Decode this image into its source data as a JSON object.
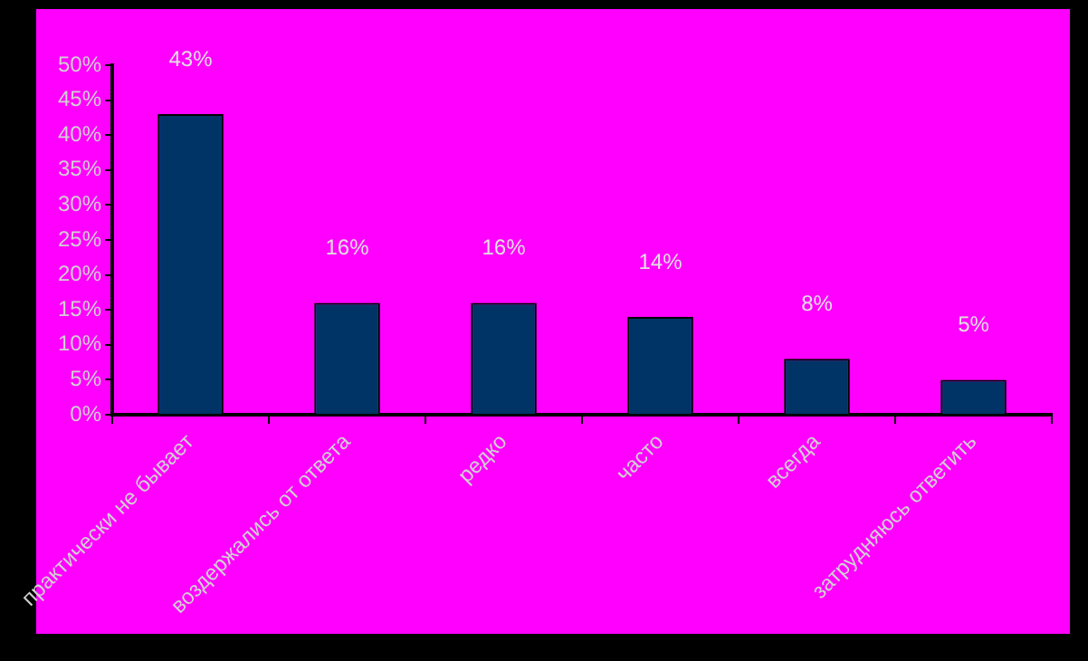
{
  "chart_data": {
    "type": "bar",
    "categories": [
      "практически не бывает",
      "воздержались от ответа",
      "редко",
      "часто",
      "всегда",
      "затрудняюсь ответить"
    ],
    "values": [
      43,
      16,
      16,
      14,
      8,
      5
    ],
    "color": "#003366",
    "value_labels": [
      "43%",
      "16%",
      "16%",
      "14%",
      "8%",
      "5%"
    ],
    "ylim": [
      0,
      50
    ],
    "yticks": [
      {
        "value": 0,
        "label": "0%"
      },
      {
        "value": 5,
        "label": "5%"
      },
      {
        "value": 10,
        "label": "10%"
      },
      {
        "value": 15,
        "label": "15%"
      },
      {
        "value": 20,
        "label": "20%"
      },
      {
        "value": 25,
        "label": "25%"
      },
      {
        "value": 30,
        "label": "30%"
      },
      {
        "value": 35,
        "label": "35%"
      },
      {
        "value": 40,
        "label": "40%"
      },
      {
        "value": 45,
        "label": "45%"
      },
      {
        "value": 50,
        "label": "50%"
      }
    ],
    "grid": false,
    "legend": false
  }
}
